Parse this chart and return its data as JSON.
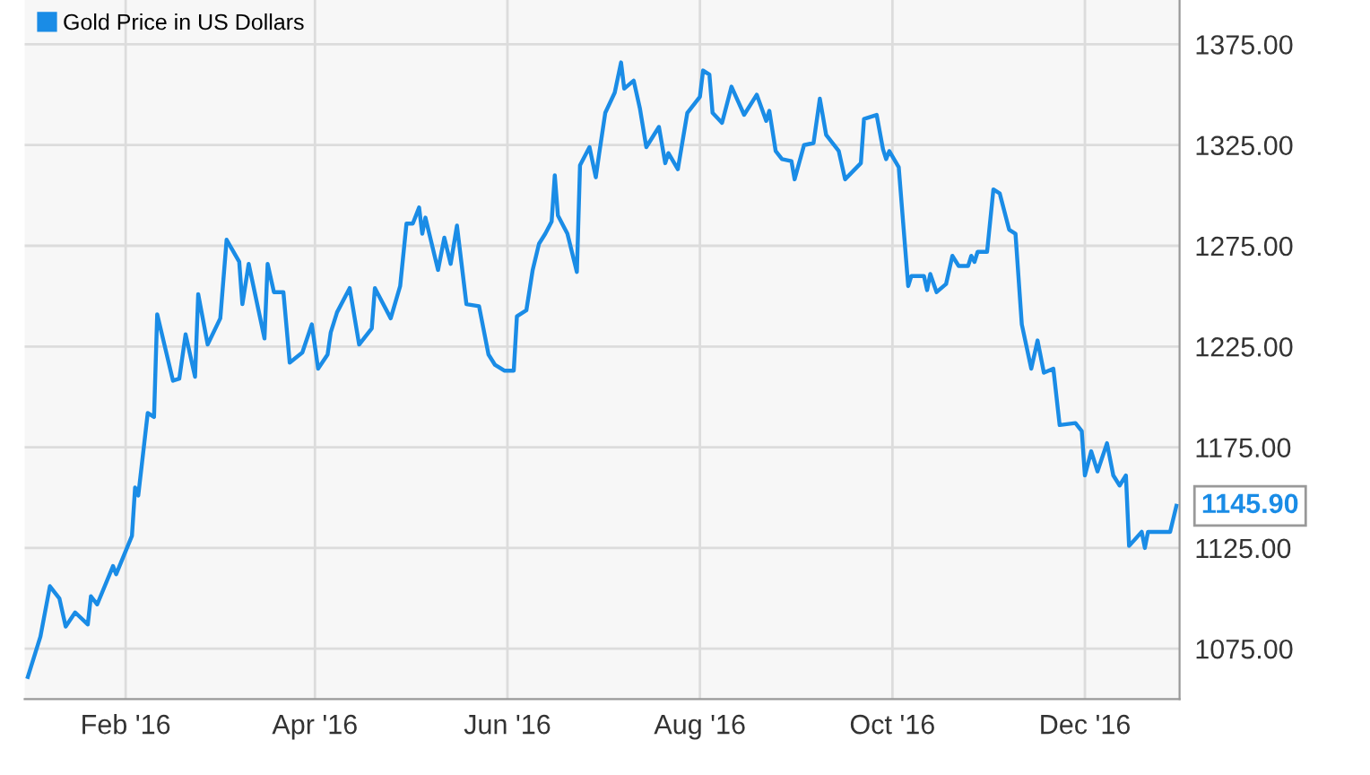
{
  "chart_data": {
    "type": "line",
    "legend": "top left",
    "grid": true,
    "x": [
      "2016-01-01",
      "2016-01-05",
      "2016-01-08",
      "2016-01-11",
      "2016-01-13",
      "2016-01-16",
      "2016-01-20",
      "2016-01-21",
      "2016-01-23",
      "2016-01-28",
      "2016-01-29",
      "2016-02-03",
      "2016-02-04",
      "2016-02-05",
      "2016-02-08",
      "2016-02-10",
      "2016-02-11",
      "2016-02-16",
      "2016-02-18",
      "2016-02-20",
      "2016-02-23",
      "2016-02-24",
      "2016-02-27",
      "2016-03-02",
      "2016-03-04",
      "2016-03-08",
      "2016-03-09",
      "2016-03-11",
      "2016-03-16",
      "2016-03-17",
      "2016-03-19",
      "2016-03-22",
      "2016-03-24",
      "2016-03-28",
      "2016-03-31",
      "2016-04-02",
      "2016-04-05",
      "2016-04-06",
      "2016-04-08",
      "2016-04-12",
      "2016-04-15",
      "2016-04-19",
      "2016-04-20",
      "2016-04-25",
      "2016-04-28",
      "2016-04-30",
      "2016-05-02",
      "2016-05-04",
      "2016-05-05",
      "2016-05-06",
      "2016-05-10",
      "2016-05-12",
      "2016-05-14",
      "2016-05-16",
      "2016-05-19",
      "2016-05-23",
      "2016-05-26",
      "2016-05-28",
      "2016-05-31",
      "2016-06-03",
      "2016-06-04",
      "2016-06-07",
      "2016-06-09",
      "2016-06-11",
      "2016-06-13",
      "2016-06-15",
      "2016-06-16",
      "2016-06-17",
      "2016-06-20",
      "2016-06-23",
      "2016-06-24",
      "2016-06-27",
      "2016-06-29",
      "2016-06-30",
      "2016-07-02",
      "2016-07-05",
      "2016-07-07",
      "2016-07-08",
      "2016-07-11",
      "2016-07-13",
      "2016-07-15",
      "2016-07-19",
      "2016-07-21",
      "2016-07-22",
      "2016-07-25",
      "2016-07-28",
      "2016-08-01",
      "2016-08-02",
      "2016-08-04",
      "2016-08-05",
      "2016-08-08",
      "2016-08-11",
      "2016-08-15",
      "2016-08-19",
      "2016-08-22",
      "2016-08-23",
      "2016-08-25",
      "2016-08-27",
      "2016-08-30",
      "2016-08-31",
      "2016-09-03",
      "2016-09-06",
      "2016-09-08",
      "2016-09-10",
      "2016-09-14",
      "2016-09-16",
      "2016-09-21",
      "2016-09-22",
      "2016-09-26",
      "2016-09-28",
      "2016-09-29",
      "2016-09-30",
      "2016-10-03",
      "2016-10-06",
      "2016-10-07",
      "2016-10-11",
      "2016-10-12",
      "2016-10-13",
      "2016-10-15",
      "2016-10-18",
      "2016-10-20",
      "2016-10-22",
      "2016-10-25",
      "2016-10-26",
      "2016-10-27",
      "2016-10-28",
      "2016-10-31",
      "2016-11-02",
      "2016-11-04",
      "2016-11-07",
      "2016-11-09",
      "2016-11-11",
      "2016-11-14",
      "2016-11-16",
      "2016-11-18",
      "2016-11-21",
      "2016-11-23",
      "2016-11-28",
      "2016-11-30",
      "2016-12-01",
      "2016-12-03",
      "2016-12-05",
      "2016-12-08",
      "2016-12-10",
      "2016-12-12",
      "2016-12-14",
      "2016-12-15",
      "2016-12-19",
      "2016-12-20",
      "2016-12-21",
      "2016-12-28",
      "2016-12-30"
    ],
    "series": [
      {
        "name": "Gold Price in US Dollars",
        "color": "#1a8ce6",
        "values": [
          1061,
          1081,
          1106,
          1100,
          1086,
          1093,
          1087,
          1101,
          1097,
          1116,
          1112,
          1131,
          1155,
          1151,
          1192,
          1190,
          1241,
          1208,
          1209,
          1231,
          1210,
          1251,
          1226,
          1239,
          1278,
          1267,
          1246,
          1266,
          1229,
          1266,
          1252,
          1252,
          1217,
          1222,
          1236,
          1214,
          1221,
          1232,
          1242,
          1254,
          1226,
          1234,
          1254,
          1239,
          1255,
          1286,
          1286,
          1294,
          1281,
          1289,
          1263,
          1279,
          1266,
          1285,
          1246,
          1245,
          1221,
          1216,
          1213,
          1213,
          1240,
          1243,
          1263,
          1276,
          1281,
          1287,
          1310,
          1290,
          1281,
          1262,
          1315,
          1324,
          1309,
          1320,
          1341,
          1351,
          1366,
          1353,
          1357,
          1343,
          1324,
          1334,
          1316,
          1321,
          1313,
          1341,
          1349,
          1362,
          1360,
          1341,
          1336,
          1354,
          1340,
          1350,
          1337,
          1342,
          1322,
          1318,
          1317,
          1308,
          1325,
          1326,
          1348,
          1330,
          1322,
          1308,
          1316,
          1338,
          1340,
          1323,
          1318,
          1322,
          1314,
          1255,
          1260,
          1260,
          1253,
          1261,
          1252,
          1256,
          1270,
          1265,
          1265,
          1270,
          1267,
          1272,
          1272,
          1303,
          1301,
          1283,
          1281,
          1236,
          1214,
          1228,
          1212,
          1214,
          1186,
          1187,
          1183,
          1161,
          1173,
          1163,
          1177,
          1161,
          1156,
          1161,
          1126,
          1133,
          1125,
          1133,
          1133,
          1145.9
        ]
      }
    ],
    "xlim": [
      "2015-12-31",
      "2016-12-31"
    ],
    "xticks": [
      {
        "value": "2016-02-01",
        "label": "Feb '16"
      },
      {
        "value": "2016-04-01",
        "label": "Apr '16"
      },
      {
        "value": "2016-06-01",
        "label": "Jun '16"
      },
      {
        "value": "2016-08-01",
        "label": "Aug '16"
      },
      {
        "value": "2016-10-01",
        "label": "Oct '16"
      },
      {
        "value": "2016-12-01",
        "label": "Dec '16"
      }
    ],
    "ylim": [
      1050,
      1397
    ],
    "yticks": [
      {
        "value": 1075,
        "label": "1075.00"
      },
      {
        "value": 1125,
        "label": "1125.00"
      },
      {
        "value": 1175,
        "label": "1175.00"
      },
      {
        "value": 1225,
        "label": "1225.00"
      },
      {
        "value": 1275,
        "label": "1275.00"
      },
      {
        "value": 1325,
        "label": "1325.00"
      },
      {
        "value": 1375,
        "label": "1375.00"
      }
    ],
    "annotations": [
      {
        "text": "1145.90",
        "x": "2016-12-30",
        "y": 1145.9
      }
    ]
  }
}
